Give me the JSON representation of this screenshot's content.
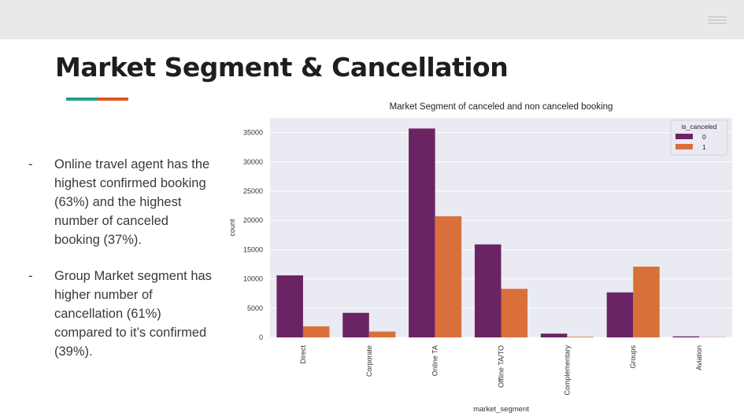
{
  "slide": {
    "title": "Market Segment & Cancellation",
    "accent_colors": [
      "#1f9e91",
      "#e2571a"
    ],
    "bullets": [
      {
        "dash": "-",
        "text": "Online travel agent has the highest confirmed booking (63%) and the highest number of canceled booking (37%)."
      },
      {
        "dash": "-",
        "text": "Group Market segment has higher number of cancellation (61%) compared to it’s confirmed (39%)."
      }
    ]
  },
  "chart_data": {
    "type": "bar",
    "title": "Market Segment of canceled and non canceled booking",
    "xlabel": "market_segment",
    "ylabel": "count",
    "categories": [
      "Direct",
      "Corporate",
      "Online TA",
      "Offline TA/TO",
      "Complementary",
      "Groups",
      "Aviation"
    ],
    "series": [
      {
        "name": "0",
        "color": "#6b2463",
        "values": [
          10600,
          4200,
          35700,
          15900,
          650,
          7700,
          180
        ]
      },
      {
        "name": "1",
        "color": "#d9703a",
        "values": [
          1900,
          1000,
          20700,
          8300,
          100,
          12100,
          50
        ]
      }
    ],
    "ylim": [
      0,
      37500
    ],
    "yticks": [
      0,
      5000,
      10000,
      15000,
      20000,
      25000,
      30000,
      35000
    ],
    "legend": {
      "title": "is_canceled",
      "placement": "top-right"
    },
    "grid": true,
    "background": "#eaeaf2"
  }
}
